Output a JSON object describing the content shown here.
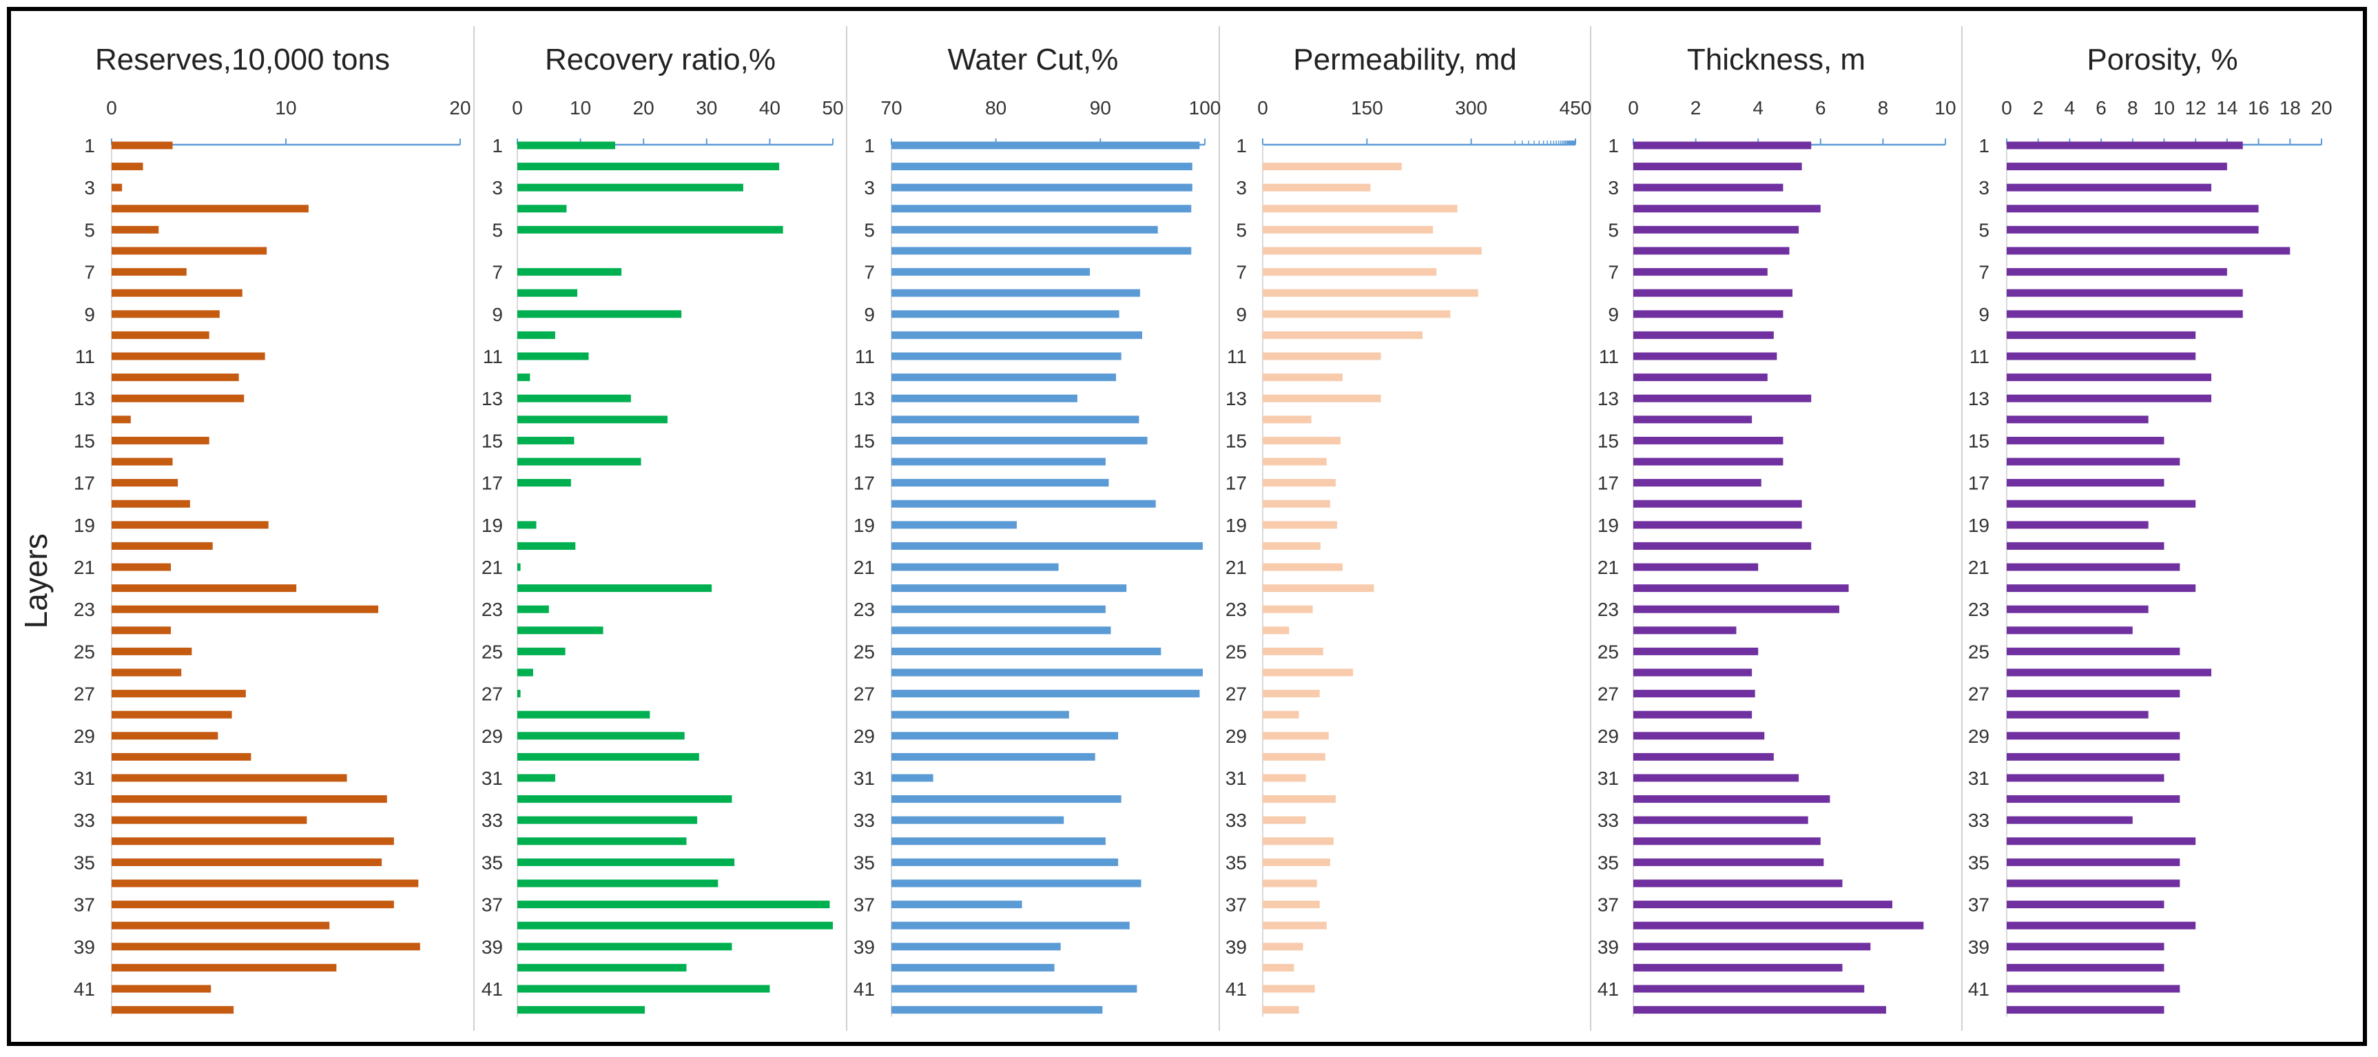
{
  "chart_data": {
    "type": "bar",
    "orientation": "horizontal",
    "ylabel": "Layers",
    "layers": [
      1,
      2,
      3,
      4,
      5,
      6,
      7,
      8,
      9,
      10,
      11,
      12,
      13,
      14,
      15,
      16,
      17,
      18,
      19,
      20,
      21,
      22,
      23,
      24,
      25,
      26,
      27,
      28,
      29,
      30,
      31,
      32,
      33,
      34,
      35,
      36,
      37,
      38,
      39,
      40,
      41,
      42
    ],
    "layer_tick_labels": [
      "1",
      "3",
      "5",
      "7",
      "9",
      "11",
      "13",
      "15",
      "17",
      "19",
      "21",
      "23",
      "25",
      "27",
      "29",
      "31",
      "33",
      "35",
      "37",
      "39",
      "41"
    ],
    "panels": [
      {
        "title": "Reserves,10,000 tons",
        "color": "#C55A11",
        "xlim": [
          0,
          20
        ],
        "xticks": [
          "0",
          "10",
          "20"
        ],
        "values": [
          3.5,
          1.8,
          0.6,
          11.3,
          2.7,
          8.9,
          4.3,
          7.5,
          6.2,
          5.6,
          8.8,
          7.3,
          7.6,
          1.1,
          5.6,
          3.5,
          3.8,
          4.5,
          9.0,
          5.8,
          3.4,
          10.6,
          15.3,
          3.4,
          4.6,
          4.0,
          7.7,
          6.9,
          6.1,
          8.0,
          13.5,
          15.8,
          11.2,
          16.2,
          15.5,
          17.6,
          16.2,
          12.5,
          17.7,
          12.9,
          5.7,
          7.0
        ]
      },
      {
        "title": "Recovery ratio,%",
        "color": "#00B050",
        "xlim": [
          0,
          50
        ],
        "xticks": [
          "0",
          "10",
          "20",
          "30",
          "40",
          "50"
        ],
        "values": [
          15.5,
          41.5,
          35.8,
          7.8,
          42.1,
          0,
          16.5,
          9.5,
          26.0,
          6.0,
          11.3,
          2.0,
          18.0,
          23.8,
          9.0,
          19.6,
          8.5,
          0,
          3.0,
          9.2,
          0.5,
          30.8,
          5.0,
          13.6,
          7.6,
          2.5,
          0.5,
          21.0,
          26.5,
          28.8,
          6.0,
          34.0,
          28.5,
          26.8,
          34.4,
          31.8,
          49.5,
          50.0,
          34.0,
          26.8,
          40.0,
          20.2
        ]
      },
      {
        "title": "Water Cut,%",
        "color": "#5B9BD5",
        "xlim": [
          70,
          100
        ],
        "xticks": [
          "70",
          "80",
          "90",
          "100"
        ],
        "values": [
          99.5,
          98.8,
          98.8,
          98.7,
          95.5,
          98.7,
          89.0,
          93.8,
          91.8,
          94.0,
          92.0,
          91.5,
          87.8,
          93.7,
          94.5,
          90.5,
          90.8,
          95.3,
          82.0,
          99.8,
          86.0,
          92.5,
          90.5,
          91.0,
          95.8,
          99.8,
          99.5,
          87.0,
          91.7,
          89.5,
          74.0,
          92.0,
          86.5,
          90.5,
          91.7,
          93.9,
          82.5,
          92.8,
          86.2,
          85.6,
          93.5,
          90.2
        ]
      },
      {
        "title": "Permeability, md",
        "color": "#F8CBAD",
        "xlim": [
          0,
          450
        ],
        "xticks": [
          "0",
          "150",
          "300",
          "450"
        ],
        "values": [
          0,
          200,
          155,
          280,
          245,
          315,
          250,
          310,
          270,
          230,
          170,
          115,
          170,
          70,
          112,
          92,
          105,
          97,
          107,
          83,
          115,
          160,
          72,
          38,
          87,
          130,
          82,
          52,
          95,
          90,
          62,
          105,
          62,
          102,
          97,
          78,
          82,
          92,
          58,
          45,
          75,
          52
        ]
      },
      {
        "title": "Thickness, m",
        "color": "#7030A0",
        "xlim": [
          0,
          10
        ],
        "xticks": [
          "0",
          "2",
          "4",
          "6",
          "8",
          "10"
        ],
        "values": [
          5.7,
          5.4,
          4.8,
          6.0,
          5.3,
          5.0,
          4.3,
          5.1,
          4.8,
          4.5,
          4.6,
          4.3,
          5.7,
          3.8,
          4.8,
          4.8,
          4.1,
          5.4,
          5.4,
          5.7,
          4.0,
          6.9,
          6.6,
          3.3,
          4.0,
          3.8,
          3.9,
          3.8,
          4.2,
          4.5,
          5.3,
          6.3,
          5.6,
          6.0,
          6.1,
          6.7,
          8.3,
          9.3,
          7.6,
          6.7,
          7.4,
          8.1
        ]
      },
      {
        "title": "Porosity, %",
        "color": "#7030A0",
        "xlim": [
          0,
          20
        ],
        "xticks": [
          "0",
          "2",
          "4",
          "6",
          "8",
          "10",
          "12",
          "14",
          "16",
          "18",
          "20"
        ],
        "values": [
          15,
          14,
          13,
          16,
          16,
          18,
          14,
          15,
          15,
          12,
          12,
          13,
          13,
          9,
          10,
          11,
          10,
          12,
          9,
          10,
          11,
          12,
          9,
          8,
          11,
          13,
          11,
          9,
          11,
          11,
          10,
          11,
          8,
          12,
          11,
          11,
          10,
          12,
          10,
          10,
          11,
          10
        ]
      }
    ]
  }
}
